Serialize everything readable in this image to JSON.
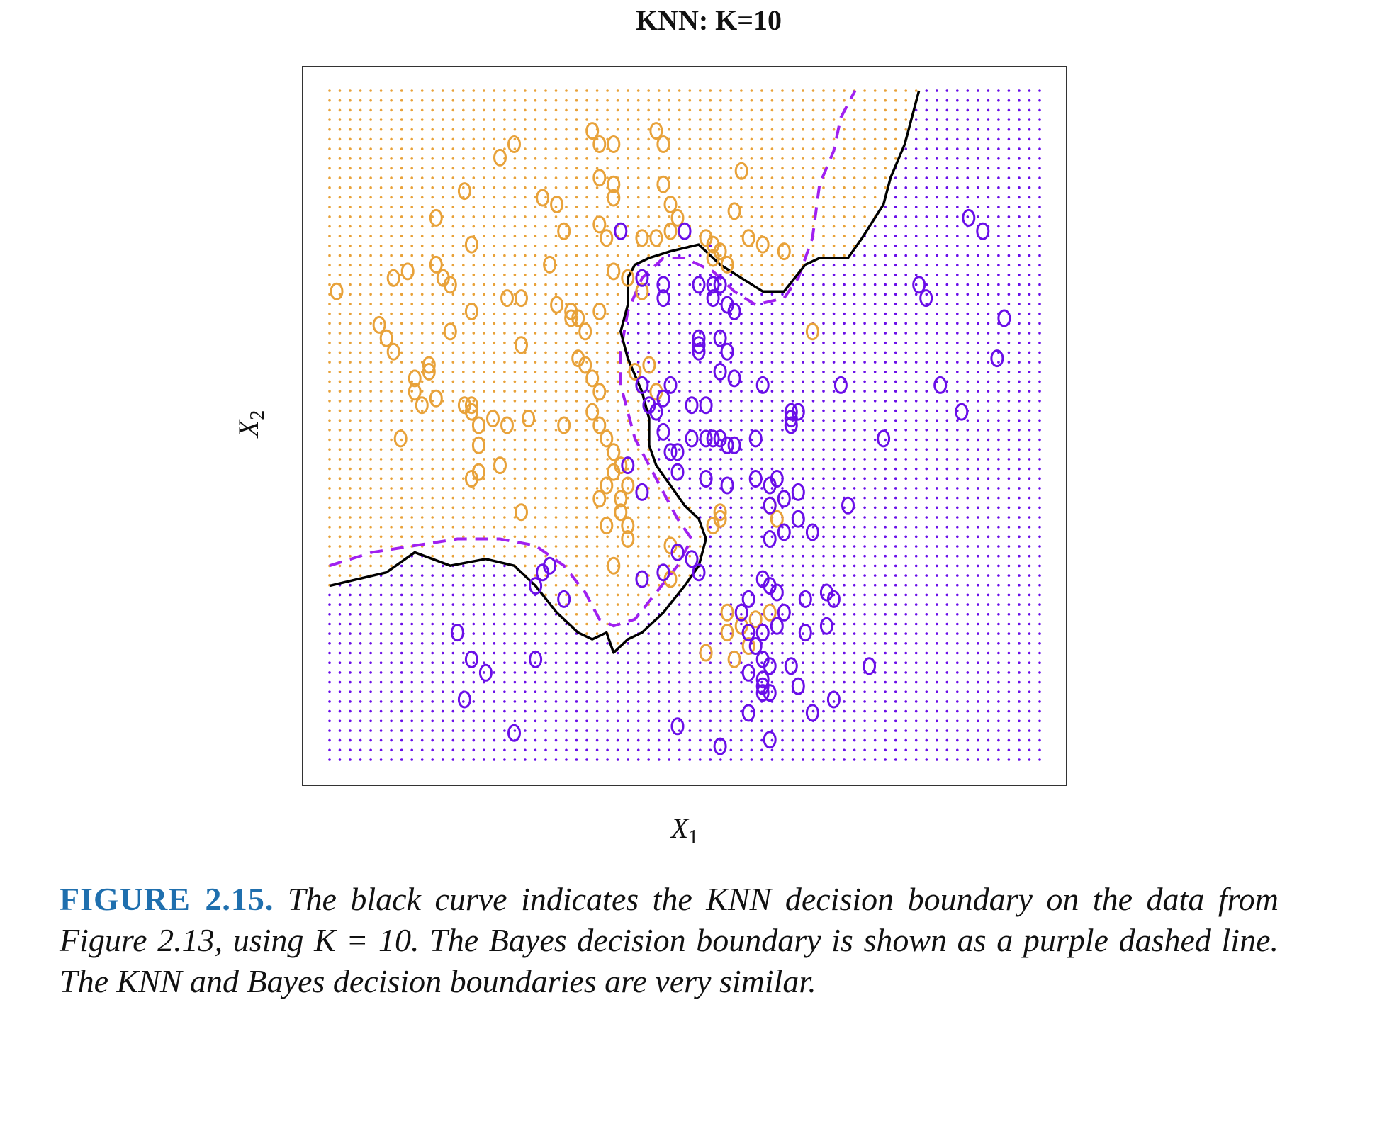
{
  "chart_data": {
    "type": "scatter",
    "title": "KNN: K=10",
    "xlabel": "X1",
    "ylabel": "X2",
    "xlim": [
      0,
      1
    ],
    "ylim": [
      0,
      1
    ],
    "grid": false,
    "legend": "none",
    "colors": {
      "orange": "#e8a23a",
      "purple": "#6a0ee8",
      "bayes": "#a020f0",
      "knn": "#000000"
    },
    "series": [
      {
        "class": "orange",
        "marker": "o",
        "points": [
          [
            0.01,
            0.7
          ],
          [
            0.07,
            0.65
          ],
          [
            0.08,
            0.63
          ],
          [
            0.09,
            0.61
          ],
          [
            0.09,
            0.72
          ],
          [
            0.11,
            0.73
          ],
          [
            0.12,
            0.55
          ],
          [
            0.12,
            0.57
          ],
          [
            0.13,
            0.53
          ],
          [
            0.14,
            0.58
          ],
          [
            0.14,
            0.59
          ],
          [
            0.1,
            0.48
          ],
          [
            0.15,
            0.81
          ],
          [
            0.15,
            0.74
          ],
          [
            0.16,
            0.72
          ],
          [
            0.17,
            0.71
          ],
          [
            0.17,
            0.64
          ],
          [
            0.15,
            0.54
          ],
          [
            0.19,
            0.85
          ],
          [
            0.2,
            0.67
          ],
          [
            0.2,
            0.77
          ],
          [
            0.19,
            0.53
          ],
          [
            0.2,
            0.53
          ],
          [
            0.2,
            0.52
          ],
          [
            0.21,
            0.5
          ],
          [
            0.21,
            0.47
          ],
          [
            0.21,
            0.43
          ],
          [
            0.2,
            0.42
          ],
          [
            0.23,
            0.51
          ],
          [
            0.24,
            0.44
          ],
          [
            0.25,
            0.5
          ],
          [
            0.25,
            0.69
          ],
          [
            0.27,
            0.69
          ],
          [
            0.27,
            0.62
          ],
          [
            0.28,
            0.51
          ],
          [
            0.27,
            0.37
          ],
          [
            0.24,
            0.9
          ],
          [
            0.26,
            0.92
          ],
          [
            0.3,
            0.84
          ],
          [
            0.32,
            0.83
          ],
          [
            0.31,
            0.74
          ],
          [
            0.34,
            0.66
          ],
          [
            0.35,
            0.66
          ],
          [
            0.34,
            0.67
          ],
          [
            0.32,
            0.68
          ],
          [
            0.33,
            0.79
          ],
          [
            0.38,
            0.8
          ],
          [
            0.39,
            0.78
          ],
          [
            0.36,
            0.64
          ],
          [
            0.38,
            0.67
          ],
          [
            0.33,
            0.5
          ],
          [
            0.35,
            0.6
          ],
          [
            0.36,
            0.59
          ],
          [
            0.37,
            0.57
          ],
          [
            0.38,
            0.55
          ],
          [
            0.37,
            0.52
          ],
          [
            0.38,
            0.5
          ],
          [
            0.39,
            0.48
          ],
          [
            0.4,
            0.46
          ],
          [
            0.41,
            0.44
          ],
          [
            0.4,
            0.43
          ],
          [
            0.39,
            0.41
          ],
          [
            0.38,
            0.39
          ],
          [
            0.39,
            0.35
          ],
          [
            0.42,
            0.41
          ],
          [
            0.41,
            0.39
          ],
          [
            0.41,
            0.37
          ],
          [
            0.42,
            0.35
          ],
          [
            0.42,
            0.33
          ],
          [
            0.37,
            0.94
          ],
          [
            0.38,
            0.92
          ],
          [
            0.4,
            0.92
          ],
          [
            0.38,
            0.87
          ],
          [
            0.4,
            0.86
          ],
          [
            0.4,
            0.84
          ],
          [
            0.4,
            0.73
          ],
          [
            0.42,
            0.72
          ],
          [
            0.44,
            0.7
          ],
          [
            0.45,
            0.59
          ],
          [
            0.46,
            0.55
          ],
          [
            0.43,
            0.58
          ],
          [
            0.46,
            0.94
          ],
          [
            0.47,
            0.92
          ],
          [
            0.47,
            0.86
          ],
          [
            0.48,
            0.83
          ],
          [
            0.49,
            0.81
          ],
          [
            0.48,
            0.79
          ],
          [
            0.46,
            0.78
          ],
          [
            0.44,
            0.78
          ],
          [
            0.53,
            0.78
          ],
          [
            0.54,
            0.77
          ],
          [
            0.55,
            0.76
          ],
          [
            0.56,
            0.74
          ],
          [
            0.54,
            0.75
          ],
          [
            0.57,
            0.82
          ],
          [
            0.58,
            0.88
          ],
          [
            0.59,
            0.78
          ],
          [
            0.61,
            0.77
          ],
          [
            0.64,
            0.76
          ],
          [
            0.68,
            0.64
          ],
          [
            0.48,
            0.32
          ],
          [
            0.54,
            0.35
          ],
          [
            0.55,
            0.37
          ],
          [
            0.55,
            0.36
          ],
          [
            0.4,
            0.29
          ],
          [
            0.48,
            0.27
          ],
          [
            0.56,
            0.22
          ],
          [
            0.56,
            0.19
          ],
          [
            0.62,
            0.38
          ],
          [
            0.63,
            0.36
          ],
          [
            0.6,
            0.21
          ],
          [
            0.62,
            0.22
          ],
          [
            0.57,
            0.15
          ],
          [
            0.53,
            0.16
          ],
          [
            0.58,
            0.2
          ],
          [
            0.59,
            0.17
          ]
        ]
      },
      {
        "class": "purple",
        "marker": "o",
        "points": [
          [
            0.41,
            0.79
          ],
          [
            0.44,
            0.72
          ],
          [
            0.47,
            0.69
          ],
          [
            0.5,
            0.79
          ],
          [
            0.47,
            0.71
          ],
          [
            0.52,
            0.71
          ],
          [
            0.54,
            0.71
          ],
          [
            0.55,
            0.71
          ],
          [
            0.54,
            0.69
          ],
          [
            0.56,
            0.68
          ],
          [
            0.57,
            0.67
          ],
          [
            0.55,
            0.63
          ],
          [
            0.56,
            0.61
          ],
          [
            0.44,
            0.56
          ],
          [
            0.45,
            0.53
          ],
          [
            0.46,
            0.52
          ],
          [
            0.47,
            0.54
          ],
          [
            0.48,
            0.56
          ],
          [
            0.52,
            0.63
          ],
          [
            0.52,
            0.62
          ],
          [
            0.52,
            0.61
          ],
          [
            0.51,
            0.53
          ],
          [
            0.53,
            0.53
          ],
          [
            0.57,
            0.57
          ],
          [
            0.61,
            0.56
          ],
          [
            0.47,
            0.49
          ],
          [
            0.48,
            0.46
          ],
          [
            0.49,
            0.46
          ],
          [
            0.51,
            0.48
          ],
          [
            0.53,
            0.48
          ],
          [
            0.54,
            0.48
          ],
          [
            0.55,
            0.48
          ],
          [
            0.56,
            0.47
          ],
          [
            0.57,
            0.47
          ],
          [
            0.6,
            0.48
          ],
          [
            0.65,
            0.52
          ],
          [
            0.66,
            0.52
          ],
          [
            0.65,
            0.51
          ],
          [
            0.65,
            0.5
          ],
          [
            0.42,
            0.44
          ],
          [
            0.44,
            0.4
          ],
          [
            0.49,
            0.43
          ],
          [
            0.53,
            0.42
          ],
          [
            0.56,
            0.41
          ],
          [
            0.6,
            0.42
          ],
          [
            0.62,
            0.41
          ],
          [
            0.63,
            0.42
          ],
          [
            0.64,
            0.39
          ],
          [
            0.62,
            0.38
          ],
          [
            0.66,
            0.4
          ],
          [
            0.62,
            0.33
          ],
          [
            0.64,
            0.34
          ],
          [
            0.66,
            0.36
          ],
          [
            0.68,
            0.34
          ],
          [
            0.44,
            0.27
          ],
          [
            0.47,
            0.28
          ],
          [
            0.49,
            0.31
          ],
          [
            0.51,
            0.3
          ],
          [
            0.52,
            0.28
          ],
          [
            0.59,
            0.24
          ],
          [
            0.58,
            0.22
          ],
          [
            0.59,
            0.19
          ],
          [
            0.61,
            0.19
          ],
          [
            0.63,
            0.2
          ],
          [
            0.61,
            0.27
          ],
          [
            0.62,
            0.26
          ],
          [
            0.63,
            0.25
          ],
          [
            0.64,
            0.22
          ],
          [
            0.67,
            0.24
          ],
          [
            0.7,
            0.25
          ],
          [
            0.71,
            0.24
          ],
          [
            0.67,
            0.19
          ],
          [
            0.7,
            0.2
          ],
          [
            0.31,
            0.29
          ],
          [
            0.3,
            0.28
          ],
          [
            0.29,
            0.26
          ],
          [
            0.33,
            0.24
          ],
          [
            0.18,
            0.19
          ],
          [
            0.2,
            0.15
          ],
          [
            0.22,
            0.13
          ],
          [
            0.29,
            0.15
          ],
          [
            0.19,
            0.09
          ],
          [
            0.26,
            0.04
          ],
          [
            0.6,
            0.17
          ],
          [
            0.61,
            0.19
          ],
          [
            0.61,
            0.12
          ],
          [
            0.62,
            0.14
          ],
          [
            0.59,
            0.13
          ],
          [
            0.61,
            0.11
          ],
          [
            0.61,
            0.15
          ],
          [
            0.62,
            0.1
          ],
          [
            0.65,
            0.14
          ],
          [
            0.66,
            0.11
          ],
          [
            0.59,
            0.07
          ],
          [
            0.61,
            0.1
          ],
          [
            0.68,
            0.07
          ],
          [
            0.71,
            0.09
          ],
          [
            0.76,
            0.14
          ],
          [
            0.73,
            0.38
          ],
          [
            0.49,
            0.05
          ],
          [
            0.55,
            0.02
          ],
          [
            0.62,
            0.03
          ],
          [
            0.72,
            0.56
          ],
          [
            0.86,
            0.56
          ],
          [
            0.89,
            0.52
          ],
          [
            0.78,
            0.48
          ],
          [
            0.83,
            0.71
          ],
          [
            0.84,
            0.69
          ],
          [
            0.9,
            0.81
          ],
          [
            0.92,
            0.79
          ],
          [
            0.95,
            0.66
          ],
          [
            0.94,
            0.6
          ],
          [
            0.55,
            0.58
          ]
        ]
      }
    ],
    "bayes_boundary": [
      [
        0.0,
        0.29
      ],
      [
        0.06,
        0.31
      ],
      [
        0.12,
        0.32
      ],
      [
        0.18,
        0.33
      ],
      [
        0.24,
        0.33
      ],
      [
        0.29,
        0.32
      ],
      [
        0.33,
        0.29
      ],
      [
        0.36,
        0.25
      ],
      [
        0.38,
        0.21
      ],
      [
        0.4,
        0.2
      ],
      [
        0.43,
        0.21
      ],
      [
        0.46,
        0.25
      ],
      [
        0.49,
        0.29
      ],
      [
        0.51,
        0.33
      ],
      [
        0.49,
        0.36
      ],
      [
        0.47,
        0.4
      ],
      [
        0.45,
        0.44
      ],
      [
        0.43,
        0.48
      ],
      [
        0.42,
        0.52
      ],
      [
        0.41,
        0.56
      ],
      [
        0.41,
        0.61
      ],
      [
        0.42,
        0.67
      ],
      [
        0.44,
        0.72
      ],
      [
        0.47,
        0.75
      ],
      [
        0.5,
        0.75
      ],
      [
        0.54,
        0.73
      ],
      [
        0.57,
        0.7
      ],
      [
        0.6,
        0.68
      ],
      [
        0.64,
        0.69
      ],
      [
        0.66,
        0.72
      ],
      [
        0.68,
        0.78
      ],
      [
        0.69,
        0.86
      ],
      [
        0.71,
        0.91
      ],
      [
        0.72,
        0.96
      ],
      [
        0.74,
        1.0
      ]
    ],
    "knn_boundary": [
      [
        0.0,
        0.26
      ],
      [
        0.04,
        0.27
      ],
      [
        0.08,
        0.28
      ],
      [
        0.12,
        0.31
      ],
      [
        0.17,
        0.29
      ],
      [
        0.22,
        0.3
      ],
      [
        0.26,
        0.29
      ],
      [
        0.29,
        0.26
      ],
      [
        0.32,
        0.22
      ],
      [
        0.35,
        0.19
      ],
      [
        0.37,
        0.18
      ],
      [
        0.39,
        0.19
      ],
      [
        0.4,
        0.16
      ],
      [
        0.42,
        0.18
      ],
      [
        0.44,
        0.19
      ],
      [
        0.47,
        0.22
      ],
      [
        0.5,
        0.26
      ],
      [
        0.52,
        0.29
      ],
      [
        0.53,
        0.33
      ],
      [
        0.52,
        0.36
      ],
      [
        0.5,
        0.38
      ],
      [
        0.48,
        0.41
      ],
      [
        0.46,
        0.44
      ],
      [
        0.45,
        0.47
      ],
      [
        0.45,
        0.51
      ],
      [
        0.44,
        0.55
      ],
      [
        0.42,
        0.6
      ],
      [
        0.41,
        0.64
      ],
      [
        0.42,
        0.68
      ],
      [
        0.42,
        0.72
      ],
      [
        0.43,
        0.74
      ],
      [
        0.45,
        0.75
      ],
      [
        0.48,
        0.76
      ],
      [
        0.52,
        0.77
      ],
      [
        0.55,
        0.74
      ],
      [
        0.58,
        0.72
      ],
      [
        0.61,
        0.7
      ],
      [
        0.64,
        0.7
      ],
      [
        0.67,
        0.74
      ],
      [
        0.69,
        0.75
      ],
      [
        0.73,
        0.75
      ],
      [
        0.75,
        0.78
      ],
      [
        0.78,
        0.83
      ],
      [
        0.79,
        0.87
      ],
      [
        0.81,
        0.92
      ],
      [
        0.82,
        0.96
      ],
      [
        0.83,
        1.0
      ]
    ]
  },
  "caption": {
    "label": "FIGURE 2.15.",
    "text": "The black curve indicates the KNN decision boundary on the data from Figure 2.13, using K = 10. The Bayes decision boundary is shown as a purple dashed line. The KNN and Bayes decision boundaries are very similar."
  }
}
